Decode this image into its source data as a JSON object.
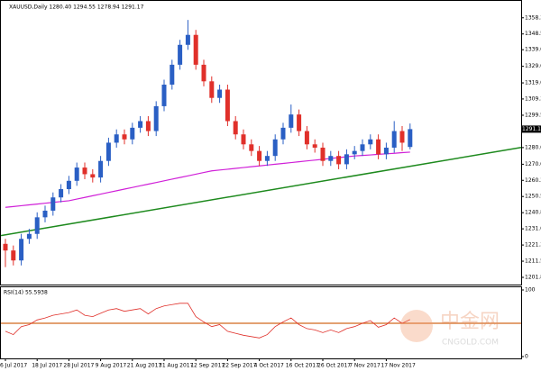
{
  "chart_data": {
    "type": "candlestick",
    "title": "XAUUSD,Daily  1280.40 1294.55 1278.94 1291.17",
    "categories": [
      "6 Jul 2017",
      null,
      null,
      null,
      "18 Jul 2017",
      null,
      null,
      null,
      "28 Jul 2017",
      null,
      null,
      null,
      "9 Aug 2017",
      null,
      null,
      null,
      "21 Aug 2017",
      null,
      null,
      null,
      "31 Aug 2017",
      null,
      null,
      null,
      "12 Sep 2017",
      null,
      null,
      null,
      "22 Sep 2017",
      null,
      null,
      null,
      "4 Oct 2017",
      null,
      null,
      null,
      "16 Oct 2017",
      null,
      null,
      null,
      "26 Oct 2017",
      null,
      null,
      null,
      "7 Nov 2017",
      null,
      null,
      null,
      "17 Nov 2017",
      null,
      null,
      null
    ],
    "open": [
      1222,
      1218,
      1212,
      1225,
      1228,
      1238,
      1242,
      1250,
      1255,
      1260,
      1268,
      1264,
      1262,
      1272,
      1283,
      1288,
      1285,
      1292,
      1296,
      1290,
      1305,
      1318,
      1330,
      1342,
      1348,
      1330,
      1320,
      1310,
      1315,
      1296,
      1288,
      1282,
      1278,
      1272,
      1275,
      1285,
      1292,
      1300,
      1290,
      1282,
      1280,
      1272,
      1275,
      1270,
      1276,
      1278,
      1282,
      1285,
      1276,
      1280,
      1290,
      1280.4
    ],
    "high": [
      1225,
      1221,
      1228,
      1231,
      1241,
      1245,
      1253,
      1258,
      1263,
      1271,
      1271,
      1267,
      1275,
      1286,
      1291,
      1291,
      1295,
      1299,
      1299,
      1308,
      1321,
      1333,
      1345,
      1357,
      1351,
      1333,
      1323,
      1318,
      1318,
      1299,
      1291,
      1285,
      1281,
      1278,
      1288,
      1295,
      1306,
      1303,
      1293,
      1285,
      1283,
      1278,
      1278,
      1279,
      1281,
      1285,
      1288,
      1288,
      1283,
      1296,
      1293,
      1294.55
    ],
    "low": [
      1208,
      1209,
      1209,
      1222,
      1225,
      1235,
      1239,
      1247,
      1252,
      1257,
      1261,
      1259,
      1259,
      1269,
      1280,
      1282,
      1282,
      1289,
      1287,
      1287,
      1302,
      1315,
      1327,
      1339,
      1327,
      1317,
      1307,
      1307,
      1293,
      1285,
      1279,
      1275,
      1269,
      1269,
      1272,
      1282,
      1289,
      1287,
      1279,
      1277,
      1269,
      1269,
      1267,
      1267,
      1273,
      1275,
      1279,
      1273,
      1273,
      1277,
      1278,
      1278.94
    ],
    "close": [
      1218,
      1212,
      1225,
      1228,
      1238,
      1242,
      1250,
      1255,
      1260,
      1268,
      1264,
      1262,
      1272,
      1283,
      1288,
      1285,
      1292,
      1296,
      1290,
      1305,
      1318,
      1330,
      1342,
      1348,
      1330,
      1320,
      1310,
      1315,
      1296,
      1288,
      1282,
      1278,
      1272,
      1275,
      1285,
      1292,
      1300,
      1290,
      1282,
      1280,
      1272,
      1275,
      1270,
      1276,
      1278,
      1282,
      1285,
      1276,
      1280,
      1290,
      1283,
      1291.17
    ],
    "up_color": "#2a5fc4",
    "down_color": "#e0302a",
    "ma": {
      "color": "#d020d8",
      "values": [
        1244,
        1244.5,
        1245,
        1245.5,
        1246,
        1246.5,
        1247,
        1247.5,
        1248,
        1249,
        1250,
        1251,
        1252,
        1253,
        1254,
        1255,
        1256,
        1257,
        1258,
        1259,
        1260,
        1261,
        1262,
        1263,
        1264,
        1265,
        1266,
        1266.5,
        1267,
        1267.5,
        1268,
        1268.5,
        1269,
        1269.5,
        1270,
        1270.5,
        1271,
        1271.5,
        1272,
        1272.5,
        1273,
        1273.5,
        1274,
        1274.5,
        1275,
        1275.3,
        1275.6,
        1276,
        1276.3,
        1276.6,
        1277,
        1277.3
      ]
    },
    "trendline": {
      "color": "#1e8a1e",
      "start": 1227,
      "end": 1280.1
    },
    "ylim": [
      1198,
      1367.4
    ],
    "yticks": [
      {
        "value": 1358.3,
        "label": "1358.30"
      },
      1348.55,
      1339.05,
      1329.05,
      1319.05,
      1309.35,
      1299.55,
      1280.05,
      {
        "value": 1270,
        "label": "1270.00"
      },
      {
        "value": 1260.3,
        "label": "1260.30"
      },
      1250.55,
      {
        "value": 1240.8,
        "label": "1240.80"
      },
      1231.05,
      {
        "value": 1221.3,
        "label": "1221.30"
      },
      1211.55,
      {
        "value": 1201.8,
        "label": "1201.80"
      }
    ],
    "rsi": {
      "title": "RSI(14) 55.5938",
      "color": "#e0302a",
      "values": [
        38,
        33,
        45,
        48,
        55,
        58,
        62,
        64,
        66,
        70,
        62,
        60,
        65,
        70,
        72,
        68,
        70,
        72,
        64,
        72,
        76,
        78,
        80,
        80,
        60,
        52,
        45,
        48,
        38,
        35,
        32,
        30,
        28,
        33,
        45,
        52,
        58,
        48,
        42,
        40,
        36,
        40,
        36,
        42,
        45,
        50,
        54,
        44,
        48,
        58,
        50,
        55.59
      ],
      "ylim": [
        0,
        100
      ],
      "yticks": [
        100,
        0
      ],
      "level": 50,
      "level_color": "#d2691e"
    },
    "watermark": {
      "text": "中金网",
      "subtext": "CNGOLD.COM"
    }
  }
}
